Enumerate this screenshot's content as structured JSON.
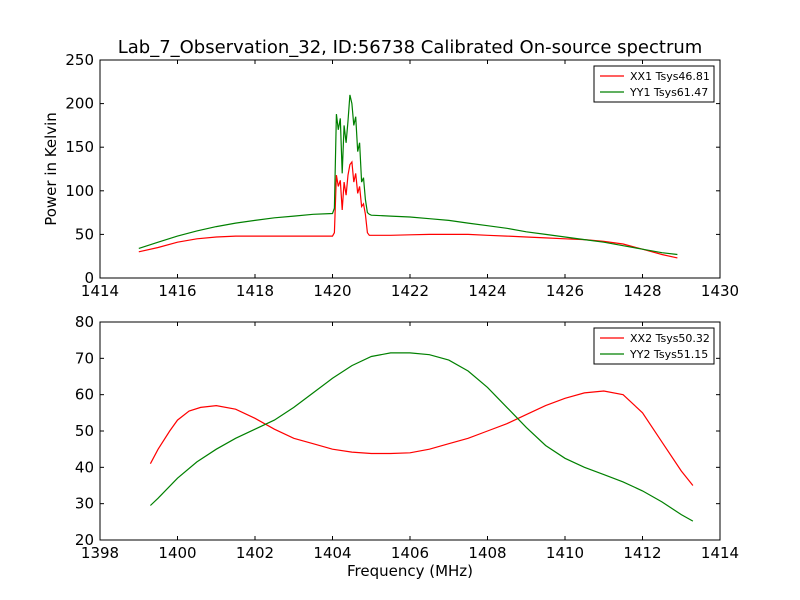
{
  "chart_data": [
    {
      "type": "line",
      "title": "Lab_7_Observation_32, ID:56738 Calibrated On-source spectrum",
      "xlabel": "",
      "ylabel": "Power in Kelvin",
      "xlim": [
        1414,
        1430
      ],
      "ylim": [
        0,
        250
      ],
      "xticks": [
        "1414",
        "1416",
        "1418",
        "1420",
        "1422",
        "1424",
        "1426",
        "1428",
        "1430"
      ],
      "yticks": [
        "0",
        "50",
        "100",
        "150",
        "200",
        "250"
      ],
      "grid": false,
      "legend_position": "top-right",
      "series": [
        {
          "name": "XX1 Tsys46.81",
          "color": "#ff0000",
          "x": [
            1415.0,
            1415.5,
            1416.0,
            1416.5,
            1417.0,
            1417.5,
            1418.0,
            1418.5,
            1419.0,
            1419.5,
            1420.0,
            1420.05,
            1420.1,
            1420.15,
            1420.2,
            1420.25,
            1420.3,
            1420.35,
            1420.4,
            1420.45,
            1420.5,
            1420.55,
            1420.6,
            1420.65,
            1420.7,
            1420.75,
            1420.8,
            1420.85,
            1420.9,
            1420.95,
            1421.0,
            1421.5,
            1422.0,
            1422.5,
            1423.0,
            1423.5,
            1424.0,
            1424.5,
            1425.0,
            1425.5,
            1426.0,
            1426.5,
            1427.0,
            1427.5,
            1428.0,
            1428.5,
            1428.9
          ],
          "y": [
            30,
            35,
            41,
            45,
            47,
            48,
            48,
            48,
            48,
            48,
            48,
            52,
            118,
            105,
            112,
            78,
            110,
            95,
            118,
            130,
            133,
            110,
            120,
            97,
            105,
            82,
            85,
            73,
            52,
            49,
            49,
            49,
            49.5,
            50,
            50,
            50,
            49,
            48,
            47,
            46,
            45,
            44,
            42,
            39,
            33,
            27,
            23
          ]
        },
        {
          "name": "YY1 Tsys61.47",
          "color": "#008000",
          "x": [
            1415.0,
            1415.5,
            1416.0,
            1416.5,
            1417.0,
            1417.5,
            1418.0,
            1418.5,
            1419.0,
            1419.5,
            1420.0,
            1420.05,
            1420.1,
            1420.15,
            1420.2,
            1420.25,
            1420.3,
            1420.35,
            1420.4,
            1420.45,
            1420.5,
            1420.55,
            1420.6,
            1420.65,
            1420.7,
            1420.75,
            1420.8,
            1420.85,
            1420.9,
            1420.95,
            1421.0,
            1421.5,
            1422.0,
            1422.5,
            1423.0,
            1423.5,
            1424.0,
            1424.5,
            1425.0,
            1425.5,
            1426.0,
            1426.5,
            1427.0,
            1427.5,
            1428.0,
            1428.5,
            1428.9
          ],
          "y": [
            34,
            41,
            48,
            54,
            59,
            63,
            66,
            69,
            71,
            73,
            74,
            80,
            188,
            170,
            183,
            120,
            175,
            155,
            180,
            210,
            200,
            175,
            185,
            145,
            155,
            110,
            115,
            90,
            75,
            73,
            72,
            71,
            70,
            68,
            66,
            63,
            60,
            57,
            53,
            50,
            47,
            44,
            41,
            37,
            33,
            29,
            27
          ]
        }
      ]
    },
    {
      "type": "line",
      "title": "",
      "xlabel": "Frequency (MHz)",
      "ylabel": "",
      "xlim": [
        1398,
        1414
      ],
      "ylim": [
        20,
        80
      ],
      "xticks": [
        "1398",
        "1400",
        "1402",
        "1404",
        "1406",
        "1408",
        "1410",
        "1412",
        "1414"
      ],
      "yticks": [
        "20",
        "30",
        "40",
        "50",
        "60",
        "70",
        "80"
      ],
      "grid": false,
      "legend_position": "top-right",
      "series": [
        {
          "name": "XX2 Tsys50.32",
          "color": "#ff0000",
          "x": [
            1399.3,
            1399.5,
            1399.8,
            1400.0,
            1400.3,
            1400.6,
            1401.0,
            1401.5,
            1402.0,
            1402.5,
            1403.0,
            1403.5,
            1404.0,
            1404.5,
            1405.0,
            1405.5,
            1406.0,
            1406.5,
            1407.0,
            1407.5,
            1408.0,
            1408.5,
            1409.0,
            1409.5,
            1410.0,
            1410.5,
            1411.0,
            1411.5,
            1412.0,
            1412.5,
            1413.0,
            1413.3
          ],
          "y": [
            41,
            45,
            50,
            53,
            55.5,
            56.5,
            57,
            56,
            53.5,
            50.5,
            48,
            46.5,
            45,
            44.2,
            43.8,
            43.8,
            44,
            45,
            46.5,
            48,
            50,
            52,
            54.5,
            57,
            59,
            60.5,
            61,
            60,
            55,
            47,
            39,
            35
          ]
        },
        {
          "name": "YY2 Tsys51.15",
          "color": "#008000",
          "x": [
            1399.3,
            1399.5,
            1400.0,
            1400.5,
            1401.0,
            1401.5,
            1402.0,
            1402.5,
            1403.0,
            1403.5,
            1404.0,
            1404.5,
            1405.0,
            1405.5,
            1406.0,
            1406.5,
            1407.0,
            1407.5,
            1408.0,
            1408.5,
            1409.0,
            1409.5,
            1410.0,
            1410.5,
            1411.0,
            1411.5,
            1412.0,
            1412.5,
            1413.0,
            1413.3
          ],
          "y": [
            29.5,
            31.5,
            37,
            41.5,
            45,
            48,
            50.5,
            53,
            56.5,
            60.5,
            64.5,
            68,
            70.5,
            71.5,
            71.5,
            71,
            69.5,
            66.5,
            62,
            56.5,
            51,
            46,
            42.5,
            40,
            38,
            36,
            33.5,
            30.5,
            27,
            25.2
          ]
        }
      ]
    }
  ]
}
